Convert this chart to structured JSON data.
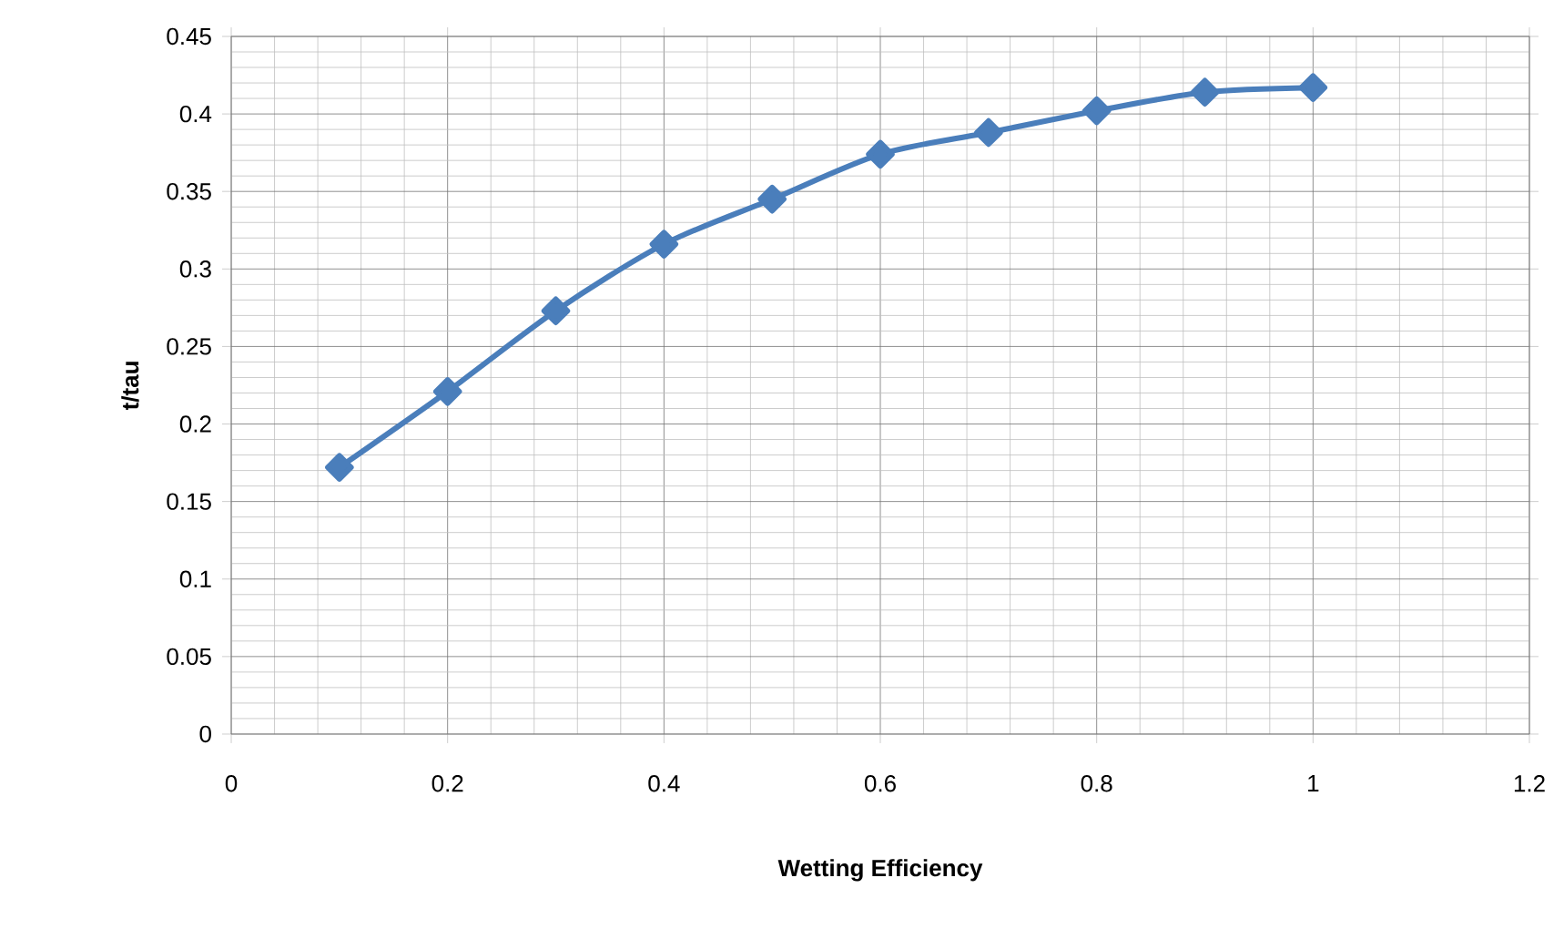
{
  "chart_data": {
    "type": "line",
    "xlabel": "Wetting Efficiency",
    "ylabel": "t/tau",
    "x": [
      0.1,
      0.2,
      0.3,
      0.4,
      0.5,
      0.6,
      0.7,
      0.8,
      0.9,
      1.0
    ],
    "series": [
      {
        "color": "#4a7ebb",
        "values": [
          0.172,
          0.221,
          0.273,
          0.316,
          0.345,
          0.374,
          0.388,
          0.402,
          0.414,
          0.417
        ]
      }
    ],
    "xlim": [
      0,
      1.2
    ],
    "xticks": [
      0,
      0.2,
      0.4,
      0.6,
      0.8,
      1,
      1.2
    ],
    "ylim": [
      0,
      0.45
    ],
    "yticks": [
      0,
      0.05,
      0.1,
      0.15,
      0.2,
      0.25,
      0.3,
      0.35,
      0.4,
      0.45
    ],
    "grid": true,
    "marker": "diamond",
    "line_style": "solid"
  }
}
